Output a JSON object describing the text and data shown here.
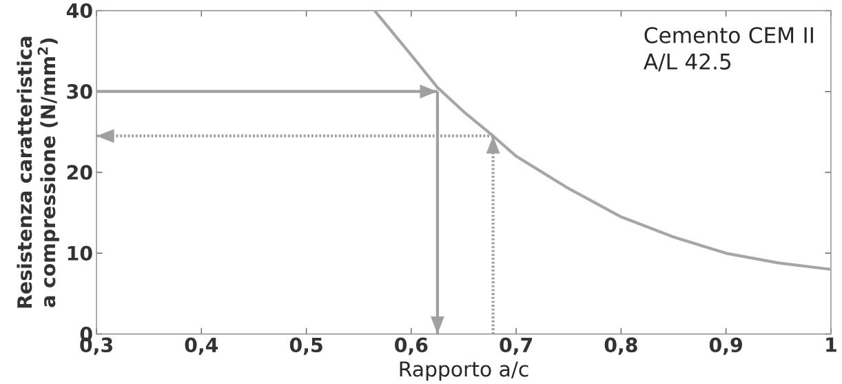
{
  "chart_data": {
    "type": "line",
    "xlabel": "Rapporto a/c",
    "ylabel": "Resistenza caratteristica a compressione (N/mm$^{2}$)",
    "annotations": [
      "Cemento CEM II A/L 42.5"
    ],
    "xlim": [
      0.3,
      1.0
    ],
    "ylim": [
      0,
      40
    ],
    "xticks": [
      {
        "value": 0.3,
        "label": "0,3"
      },
      {
        "value": 0.4,
        "label": "0,4"
      },
      {
        "value": 0.5,
        "label": "0,5"
      },
      {
        "value": 0.6,
        "label": "0,6"
      },
      {
        "value": 0.7,
        "label": "0,7"
      },
      {
        "value": 0.8,
        "label": "0,8"
      },
      {
        "value": 0.9,
        "label": "0,9"
      },
      {
        "value": 1.0,
        "label": "1"
      }
    ],
    "yticks": [
      0,
      10,
      20,
      30,
      40
    ],
    "grid": false,
    "marker": "none",
    "series": [
      {
        "color": "#a6a6a6",
        "line_style": "solid",
        "x": [
          0.565,
          0.6,
          0.625,
          0.65,
          0.678,
          0.7,
          0.75,
          0.8,
          0.85,
          0.9,
          0.95,
          1.0
        ],
        "values": [
          40,
          34.5,
          30.5,
          27.5,
          24.5,
          22,
          18,
          14.5,
          12,
          10,
          8.8,
          8
        ]
      },
      {
        "color": "#a0a0a0",
        "line_style": "solid",
        "x": [
          0.3,
          0.625
        ],
        "values": [
          30,
          30
        ]
      },
      {
        "color": "#a0a0a0",
        "line_style": "solid",
        "x": [
          0.625,
          0.625
        ],
        "values": [
          30,
          0
        ]
      },
      {
        "color": "#a0a0a0",
        "line_style": "dotted",
        "x": [
          0.678,
          0.678
        ],
        "values": [
          0,
          24.5
        ]
      },
      {
        "color": "#a0a0a0",
        "line_style": "dotted",
        "x": [
          0.678,
          0.3
        ],
        "values": [
          24.5,
          24.5
        ]
      }
    ]
  }
}
